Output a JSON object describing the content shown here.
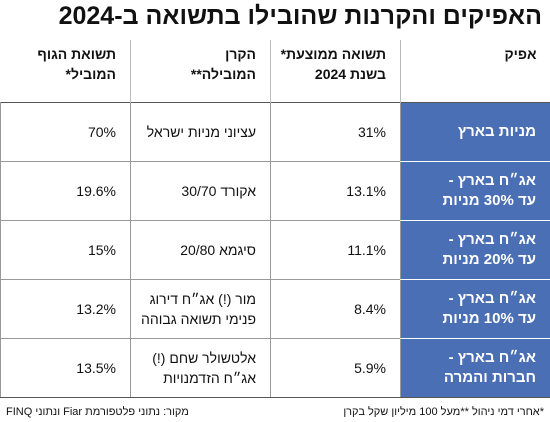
{
  "title": "האפיקים והקרנות שהובילו בתשואה ב-2024",
  "table": {
    "header": [
      [
        "אפיק"
      ],
      [
        "תשואה ממוצעת*",
        "בשנת 2024"
      ],
      [
        "הקרן",
        "המובילה**"
      ],
      [
        "תשואת הגוף",
        "המוביל*"
      ]
    ],
    "rows": [
      [
        [
          "מניות בארץ"
        ],
        [
          "31%"
        ],
        [
          "עציוני מניות ישראל"
        ],
        [
          "70%"
        ]
      ],
      [
        [
          "אג״ח בארץ -",
          "עד 30% מניות"
        ],
        [
          "13.1%"
        ],
        [
          "אקורד 30/70"
        ],
        [
          "19.6%"
        ]
      ],
      [
        [
          "אג״ח בארץ -",
          "עד 20% מניות"
        ],
        [
          "11.1%"
        ],
        [
          "סיגמא 20/80"
        ],
        [
          "15%"
        ]
      ],
      [
        [
          "אג״ח בארץ -",
          "עד 10% מניות"
        ],
        [
          "8.4%"
        ],
        [
          "מור (!) אג״ח דירוג",
          "פנימי תשואה גבוהה"
        ],
        [
          "13.2%"
        ]
      ],
      [
        [
          "אג״ח בארץ -",
          "חברות והמרה"
        ],
        [
          "5.9%"
        ],
        [
          "אלטשולר שחם (!)",
          "אג״ח הזדמנויות"
        ],
        [
          "13.5%"
        ]
      ]
    ]
  },
  "footer": {
    "notes": "*אחרי דמי ניהול  **מעל 100 מיליון שקל בקרן",
    "source": "מקור: נתוני פלטפורמת Fiar ונתוני FINQ"
  }
}
